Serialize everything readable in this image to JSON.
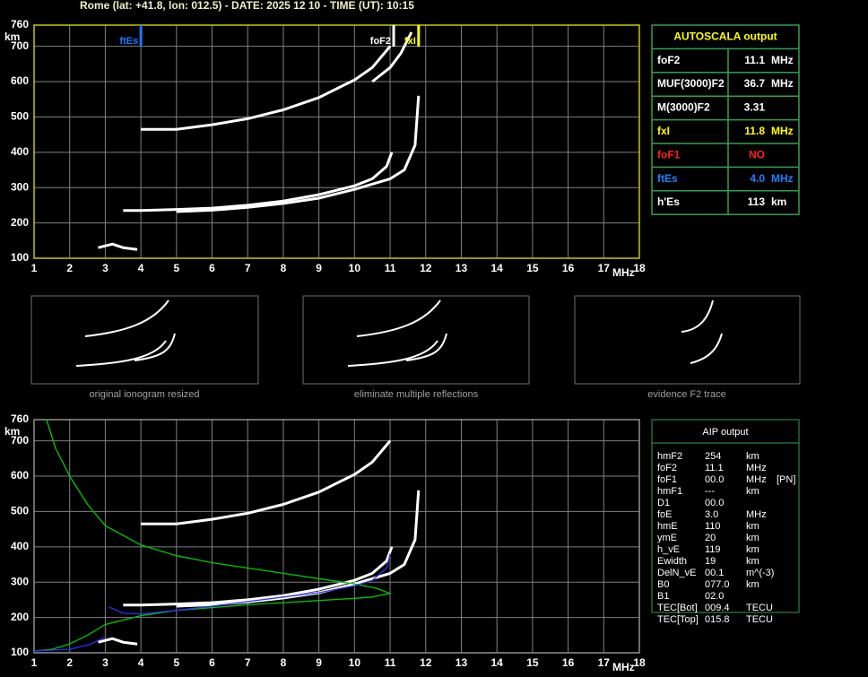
{
  "header": {
    "title": "Rome (lat: +41.8, lon: 012.5) - DATE: 2025 12 10 - TIME (UT): 10:15"
  },
  "chart_data": [
    {
      "type": "line",
      "x_label": "MHz",
      "y_label": "km",
      "xlim": [
        1,
        18
      ],
      "ylim": [
        100,
        760
      ],
      "xticks": [
        1,
        2,
        3,
        4,
        5,
        6,
        7,
        8,
        9,
        10,
        11,
        12,
        13,
        14,
        15,
        16,
        17,
        18
      ],
      "yticks": [
        100,
        200,
        300,
        400,
        500,
        600,
        700,
        760
      ],
      "grid": true,
      "frame_color": "#c8c800",
      "series": [
        {
          "color": "#ffffff",
          "x": [
            3.5,
            4,
            5,
            6,
            7,
            8,
            9,
            10,
            10.5,
            10.9,
            11.05
          ],
          "values": [
            235,
            235,
            238,
            242,
            250,
            262,
            280,
            305,
            325,
            360,
            400
          ]
        },
        {
          "color": "#ffffff",
          "x": [
            5,
            6,
            7,
            8,
            9,
            10,
            11,
            11.4,
            11.7,
            11.8
          ],
          "values": [
            232,
            236,
            244,
            255,
            270,
            295,
            325,
            350,
            420,
            560
          ]
        },
        {
          "color": "#ffffff",
          "x": [
            4,
            5,
            6,
            7,
            8,
            9,
            10,
            10.5,
            11
          ],
          "values": [
            465,
            465,
            478,
            495,
            520,
            555,
            605,
            640,
            700
          ]
        },
        {
          "color": "#ffffff",
          "x": [
            10.5,
            11,
            11.3,
            11.6
          ],
          "values": [
            600,
            640,
            680,
            740
          ]
        },
        {
          "color": "#ffffff",
          "x": [
            2.8,
            3.2,
            3.5,
            3.9
          ],
          "values": [
            130,
            140,
            130,
            125
          ]
        }
      ],
      "annotations": [
        {
          "label": "ftEs",
          "x": 4.0,
          "color": "#1e78ff"
        },
        {
          "label": "foF2",
          "x": 11.1,
          "color": "#ffffff"
        },
        {
          "label": "fxI",
          "x": 11.8,
          "color": "#ffff00"
        }
      ]
    },
    {
      "type": "line",
      "x_label": "MHz",
      "y_label": "km",
      "xlim": [
        1,
        18
      ],
      "ylim": [
        100,
        760
      ],
      "xticks": [
        1,
        2,
        3,
        4,
        5,
        6,
        7,
        8,
        9,
        10,
        11,
        12,
        13,
        14,
        15,
        16,
        17,
        18
      ],
      "yticks": [
        100,
        200,
        300,
        400,
        500,
        600,
        700,
        760
      ],
      "grid": true,
      "frame_color": "#909090",
      "series": [
        {
          "color": "#ffffff",
          "x": [
            3.5,
            4,
            5,
            6,
            7,
            8,
            9,
            10,
            10.5,
            10.9,
            11.05
          ],
          "values": [
            235,
            235,
            238,
            242,
            250,
            262,
            280,
            305,
            325,
            360,
            400
          ]
        },
        {
          "color": "#ffffff",
          "x": [
            5,
            6,
            7,
            8,
            9,
            10,
            11,
            11.4,
            11.7,
            11.8
          ],
          "values": [
            232,
            236,
            244,
            255,
            270,
            295,
            325,
            350,
            420,
            560
          ]
        },
        {
          "color": "#ffffff",
          "x": [
            4,
            5,
            6,
            7,
            8,
            9,
            10,
            10.5,
            11
          ],
          "values": [
            465,
            465,
            478,
            495,
            520,
            555,
            605,
            640,
            700
          ]
        },
        {
          "color": "#ffffff",
          "x": [
            2.8,
            3.2,
            3.5,
            3.9
          ],
          "values": [
            130,
            140,
            130,
            125
          ]
        },
        {
          "color": "#00c800",
          "x": [
            1.35,
            1.6,
            2,
            2.5,
            3,
            4,
            5,
            6,
            7,
            8,
            9,
            10,
            10.6,
            11,
            10.5,
            10,
            9,
            8,
            7,
            6,
            5,
            4,
            3,
            2.5,
            2,
            1.5,
            1
          ],
          "values": [
            760,
            680,
            600,
            520,
            460,
            405,
            375,
            355,
            340,
            325,
            310,
            295,
            283,
            268,
            258,
            254,
            248,
            242,
            236,
            228,
            220,
            205,
            180,
            150,
            125,
            110,
            105
          ]
        },
        {
          "color": "#3030ff",
          "x": [
            3.1,
            3.5,
            4,
            5,
            6,
            7,
            8,
            9,
            10,
            10.5,
            10.9,
            11
          ],
          "values": [
            230,
            212,
            210,
            220,
            232,
            245,
            258,
            270,
            290,
            305,
            340,
            380
          ]
        },
        {
          "color": "#3030ff",
          "x": [
            1,
            2,
            2.6,
            3
          ],
          "values": [
            105,
            110,
            125,
            145
          ]
        }
      ]
    }
  ],
  "autoscala": {
    "title": "AUTOSCALA output",
    "rows": [
      {
        "cells": [
          "foF2",
          "11.1",
          "MHz"
        ],
        "color": "#ffffff"
      },
      {
        "cells": [
          "MUF(3000)F2",
          "36.7",
          "MHz"
        ],
        "color": "#ffffff"
      },
      {
        "cells": [
          "M(3000)F2",
          "3.31"
        ],
        "color": "#ffffff"
      },
      {
        "cells": [
          "fxI",
          "11.8",
          "MHz"
        ],
        "color": "#ffff00"
      },
      {
        "cells": [
          "foF1",
          "NO"
        ],
        "color": "#ff2020"
      },
      {
        "cells": [
          "ftEs",
          "4.0",
          "MHz"
        ],
        "color": "#2080ff"
      },
      {
        "cells": [
          "h'Es",
          "113",
          "km"
        ],
        "color": "#ffffff"
      }
    ]
  },
  "thumbnails": [
    "original ionogram resized",
    "eliminate multiple reflections",
    "evidence F2 trace"
  ],
  "aip": {
    "title": "AIP output",
    "rows": [
      [
        "hmF2",
        "254",
        "km"
      ],
      [
        "foF2",
        "11.1",
        "MHz"
      ],
      [
        "foF1",
        "00.0",
        "MHz",
        "[PN]"
      ],
      [
        "hmF1",
        "---",
        "km"
      ],
      [
        "D1",
        "00.0"
      ],
      [
        "foE",
        "3.0",
        "MHz"
      ],
      [
        "hmE",
        "110",
        "km"
      ],
      [
        "ymE",
        "20",
        "km"
      ],
      [
        "h_vE",
        "119",
        "km"
      ],
      [
        "Ewidth",
        "19",
        "km"
      ],
      [
        "DelN_vE",
        "00.1",
        "m^(-3)"
      ],
      [
        "B0",
        "077.0",
        "km"
      ],
      [
        "B1",
        "02.0"
      ],
      [
        "TEC[Bot]",
        "009.4",
        "TECU"
      ],
      [
        "TEC[Top]",
        "015.8",
        "TECU"
      ]
    ]
  }
}
